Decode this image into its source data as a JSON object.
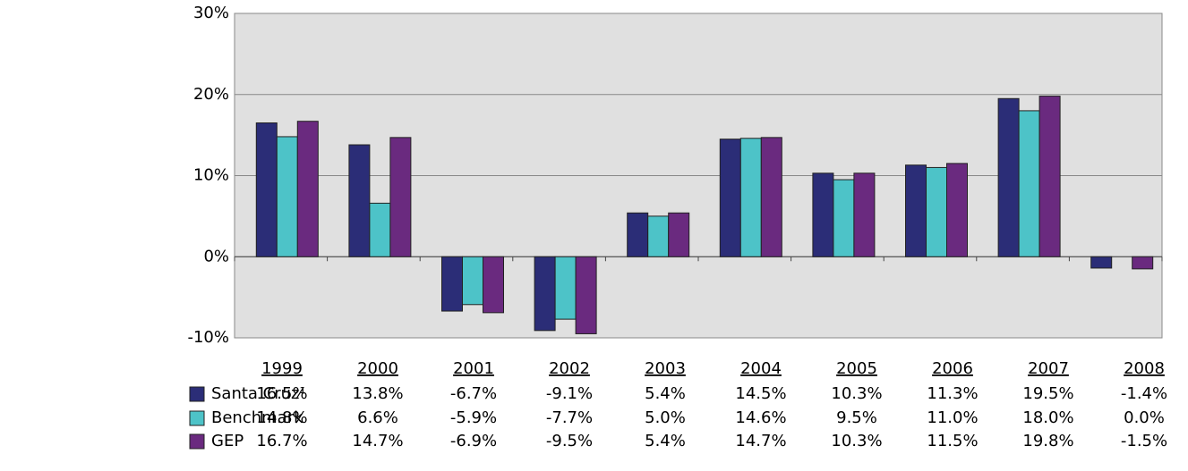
{
  "chart_data": {
    "type": "bar",
    "categories": [
      "1999",
      "2000",
      "2001",
      "2002",
      "2003",
      "2004",
      "2005",
      "2006",
      "2007",
      "2008"
    ],
    "series": [
      {
        "name": "Santa Cruz¹",
        "color": "#2b2d77",
        "values": [
          16.5,
          13.8,
          -6.7,
          -9.1,
          5.4,
          14.5,
          10.3,
          11.3,
          19.5,
          -1.4
        ],
        "value_labels": [
          "16.5%",
          "13.8%",
          "-6.7%",
          "-9.1%",
          "5.4%",
          "14.5%",
          "10.3%",
          "11.3%",
          "19.5%",
          "-1.4%"
        ]
      },
      {
        "name": "Benchmark",
        "color": "#4dc3c8",
        "values": [
          14.8,
          6.6,
          -5.9,
          -7.7,
          5.0,
          14.6,
          9.5,
          11.0,
          18.0,
          0.0
        ],
        "value_labels": [
          "14.8%",
          "6.6%",
          "-5.9%",
          "-7.7%",
          "5.0%",
          "14.6%",
          "9.5%",
          "11.0%",
          "18.0%",
          "0.0%"
        ]
      },
      {
        "name": "GEP",
        "color": "#6a2a7f",
        "values": [
          16.7,
          14.7,
          -6.9,
          -9.5,
          5.4,
          14.7,
          10.3,
          11.5,
          19.8,
          -1.5
        ],
        "value_labels": [
          "16.7%",
          "14.7%",
          "-6.9%",
          "-9.5%",
          "5.4%",
          "14.7%",
          "10.3%",
          "11.5%",
          "19.8%",
          "-1.5%"
        ]
      }
    ],
    "ylim": [
      -10,
      30
    ],
    "yticks": [
      {
        "value": -10,
        "label": "-10%"
      },
      {
        "value": 0,
        "label": "0%"
      },
      {
        "value": 10,
        "label": "10%"
      },
      {
        "value": 20,
        "label": "20%"
      },
      {
        "value": 30,
        "label": "30%"
      }
    ],
    "grid": true
  }
}
